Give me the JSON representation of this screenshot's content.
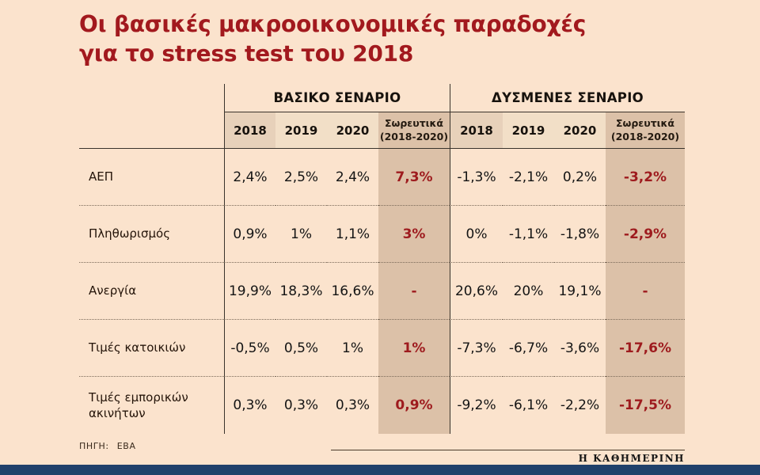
{
  "title": {
    "line1": "Οι βασικές μακροοικονομικές παραδοχές",
    "line2": "για το stress test του 2018"
  },
  "table": {
    "groups": [
      {
        "label": "ΒΑΣΙΚΟ ΣΕΝΑΡΙΟ",
        "years": [
          "2018",
          "2019",
          "2020"
        ],
        "cumulative_line1": "Σωρευτικά",
        "cumulative_line2": "(2018-2020)"
      },
      {
        "label": "ΔΥΣΜΕΝΕΣ ΣΕΝΑΡΙΟ",
        "years": [
          "2018",
          "2019",
          "2020"
        ],
        "cumulative_line1": "Σωρευτικά",
        "cumulative_line2": "(2018-2020)"
      }
    ],
    "rows": [
      {
        "label": "ΑΕΠ",
        "cells": [
          "2,4%",
          "2,5%",
          "2,4%",
          "7,3%",
          "-1,3%",
          "-2,1%",
          "0,2%",
          "-3,2%"
        ]
      },
      {
        "label": "Πληθωρισμός",
        "cells": [
          "0,9%",
          "1%",
          "1,1%",
          "3%",
          "0%",
          "-1,1%",
          "-1,8%",
          "-2,9%"
        ]
      },
      {
        "label": "Ανεργία",
        "cells": [
          "19,9%",
          "18,3%",
          "16,6%",
          "-",
          "20,6%",
          "20%",
          "19,1%",
          "-"
        ]
      },
      {
        "label": "Τιμές κατοικιών",
        "cells": [
          "-0,5%",
          "0,5%",
          "1%",
          "1%",
          "-7,3%",
          "-6,7%",
          "-3,6%",
          "-17,6%"
        ]
      },
      {
        "label": "Τιμές εμπορικών ακινήτων",
        "cells": [
          "0,3%",
          "0,3%",
          "0,3%",
          "0,9%",
          "-9,2%",
          "-6,1%",
          "-2,2%",
          "-17,5%"
        ]
      }
    ]
  },
  "footer": {
    "source": "ΠΗΓΗ: EBA",
    "brand": "Η ΚΑΘΗΜΕΡΙΝΗ"
  },
  "colors": {
    "background": "#fbe3cd",
    "accent_red": "#9e1b1e",
    "cumulative_bg": "#dcc1a8",
    "year_2018_bg": "#e7d1ba",
    "year_bg": "#f2dfc7",
    "bottom_bar": "#20406b"
  },
  "chart_data": {
    "type": "table",
    "title": "Οι βασικές μακροοικονομικές παραδοχές για το stress test του 2018",
    "column_groups": [
      "ΒΑΣΙΚΟ ΣΕΝΑΡΙΟ",
      "ΔΥΣΜΕΝΕΣ ΣΕΝΑΡΙΟ"
    ],
    "columns": [
      "2018",
      "2019",
      "2020",
      "Σωρευτικά (2018-2020)",
      "2018",
      "2019",
      "2020",
      "Σωρευτικά (2018-2020)"
    ],
    "rows": [
      [
        "ΑΕΠ",
        "2,4%",
        "2,5%",
        "2,4%",
        "7,3%",
        "-1,3%",
        "-2,1%",
        "0,2%",
        "-3,2%"
      ],
      [
        "Πληθωρισμός",
        "0,9%",
        "1%",
        "1,1%",
        "3%",
        "0%",
        "-1,1%",
        "-1,8%",
        "-2,9%"
      ],
      [
        "Ανεργία",
        "19,9%",
        "18,3%",
        "16,6%",
        "-",
        "20,6%",
        "20%",
        "19,1%",
        "-"
      ],
      [
        "Τιμές κατοικιών",
        "-0,5%",
        "0,5%",
        "1%",
        "1%",
        "-7,3%",
        "-6,7%",
        "-3,6%",
        "-17,6%"
      ],
      [
        "Τιμές εμπορικών ακινήτων",
        "0,3%",
        "0,3%",
        "0,3%",
        "0,9%",
        "-9,2%",
        "-6,1%",
        "-2,2%",
        "-17,5%"
      ]
    ],
    "source": "ΠΗΓΗ: EBA",
    "legend_position": "none",
    "grid": "dotted-row-separators"
  }
}
